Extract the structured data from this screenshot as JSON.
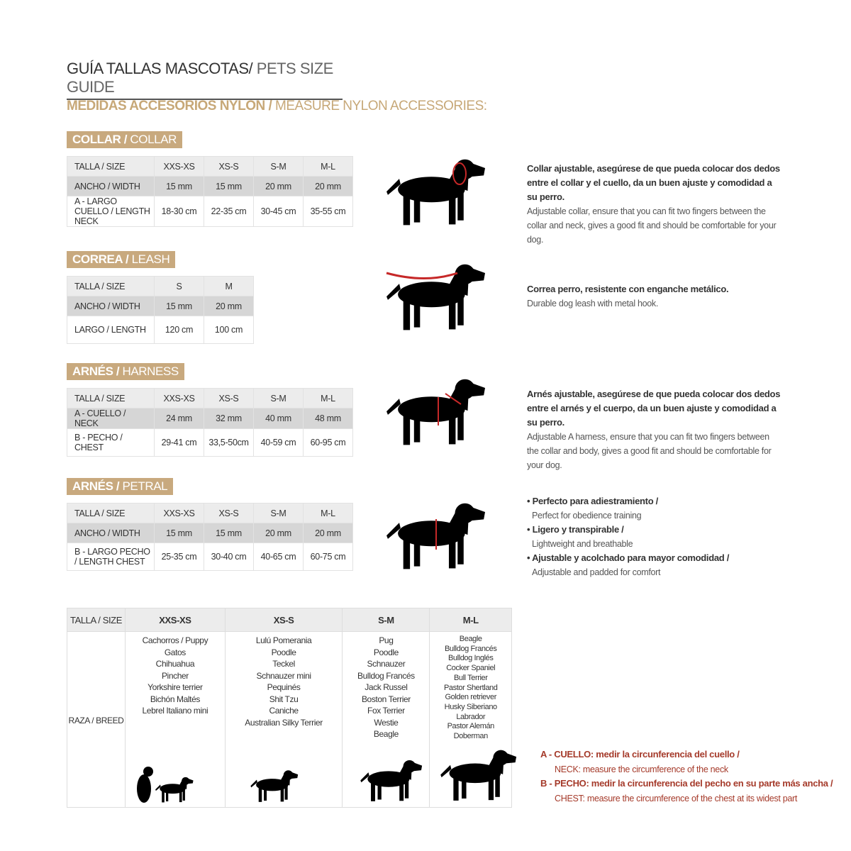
{
  "header": {
    "title_es": "GUÍA TALLAS MASCOTAS/",
    "title_en": "PETS SIZE GUIDE",
    "subtitle_es": "MEDIDAS ACCESORIOS NYLON /",
    "subtitle_en": "MEASURE NYLON ACCESSORIES:"
  },
  "sections": [
    {
      "label_es": "COLLAR /",
      "label_en": "COLLAR",
      "table": [
        [
          "TALLA / SIZE",
          "XXS-XS",
          "XS-S",
          "S-M",
          "M-L"
        ],
        [
          "ANCHO / WIDTH",
          "15 mm",
          "15 mm",
          "20 mm",
          "20 mm"
        ],
        [
          "A - LARGO CUELLO / LENGTH NECK",
          "18-30 cm",
          "22-35 cm",
          "30-45 cm",
          "35-55 cm"
        ]
      ],
      "description_es": "Collar ajustable, asegúrese de que pueda colocar dos dedos entre el collar y el cuello, da un buen ajuste y comodidad a su perro.",
      "description_en": "Adjustable collar, ensure that you can fit two fingers between the collar and neck, gives a good fit and should be comfortable for your dog."
    },
    {
      "label_es": "CORREA /",
      "label_en": "LEASH",
      "table": [
        [
          "TALLA / SIZE",
          "S",
          "M"
        ],
        [
          "ANCHO / WIDTH",
          "15 mm",
          "20 mm"
        ],
        [
          "LARGO / LENGTH",
          "120 cm",
          "100 cm"
        ]
      ],
      "description_es": "Correa perro, resistente con enganche metálico.",
      "description_en": "Durable dog leash with metal hook."
    },
    {
      "label_es": "ARNÉS /",
      "label_en": "HARNESS",
      "table": [
        [
          "TALLA / SIZE",
          "XXS-XS",
          "XS-S",
          "S-M",
          "M-L"
        ],
        [
          "A - CUELLO / NECK",
          "24 mm",
          "32 mm",
          "40 mm",
          "48 mm"
        ],
        [
          "B - PECHO / CHEST",
          "29-41 cm",
          "33,5-50cm",
          "40-59 cm",
          "60-95 cm"
        ]
      ],
      "description_es": "Arnés ajustable, asegúrese de que pueda colocar dos dedos entre el arnés y el cuerpo, da un buen ajuste y comodidad a su perro.",
      "description_en": "Adjustable A harness, ensure that you can fit two fingers between the collar and body, gives a good fit and should be comfortable for your dog."
    },
    {
      "label_es": "ARNÉS /",
      "label_en": "PETRAL",
      "table": [
        [
          "TALLA / SIZE",
          "XXS-XS",
          "XS-S",
          "S-M",
          "M-L"
        ],
        [
          "ANCHO / WIDTH",
          "15 mm",
          "15 mm",
          "20 mm",
          "20 mm"
        ],
        [
          "B - LARGO PECHO / LENGTH CHEST",
          "25-35 cm",
          "30-40 cm",
          "40-65 cm",
          "60-75 cm"
        ]
      ],
      "bullets": [
        {
          "es": "Perfecto para adiestramiento /",
          "en": "Perfect for obedience training"
        },
        {
          "es": "Ligero y transpirable /",
          "en": "Lightweight and breathable"
        },
        {
          "es": "Ajustable y acolchado para mayor comodidad /",
          "en": "Adjustable and padded for comfort"
        }
      ]
    }
  ],
  "breeds": {
    "header": [
      "TALLA / SIZE",
      "XXS-XS",
      "XS-S",
      "S-M",
      "M-L"
    ],
    "row_label": "RAZA / BREED",
    "columns": [
      [
        "Cachorros / Puppy",
        "Gatos",
        "Chihuahua",
        "Pincher",
        "Yorkshire terrier",
        "Bichón Maltés",
        "Lebrel Italiano mini"
      ],
      [
        "Lulú Pomerania",
        "Poodle",
        "Teckel",
        "Schnauzer mini",
        "Pequinés",
        "Shit Tzu",
        "Caniche",
        "Australian Silky Terrier"
      ],
      [
        "Pug",
        "Poodle",
        "Schnauzer",
        "Bulldog Francés",
        "Jack Russel",
        "Boston Terrier",
        "Fox Terrier",
        "Westie",
        "Beagle"
      ],
      [
        "Beagle",
        "Bulldog Francés",
        "Bulldog Inglés",
        "Cocker Spaniel",
        "Bull Terrier",
        "Pastor Shertland",
        "Golden retriever",
        "Husky Siberiano",
        "Labrador",
        "Pastor Alemán",
        "Doberman"
      ]
    ]
  },
  "notes": [
    {
      "es": "A - CUELLO: medir la circunferencia del cuello /",
      "en": "NECK: measure the circumference of the neck"
    },
    {
      "es": "B - PECHO: medir la circunferencia del pecho en su parte más ancha /",
      "en": "CHEST: measure the circumference of the chest at its widest part"
    }
  ]
}
